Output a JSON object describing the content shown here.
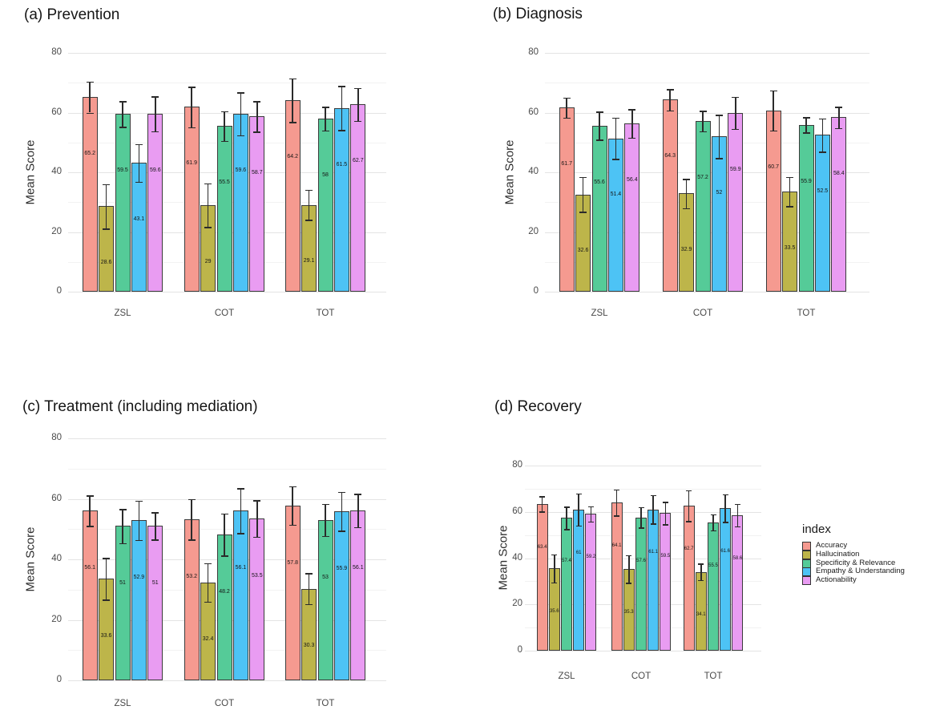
{
  "figure_title": "",
  "legend": {
    "title": "index",
    "entries": [
      {
        "label": "Accuracy",
        "color": "#F59A90"
      },
      {
        "label": "Hallucination",
        "color": "#BDB54A"
      },
      {
        "label": "Specificity & Relevance",
        "color": "#55CB98"
      },
      {
        "label": "Empathy & Understanding",
        "color": "#4DC3F5"
      },
      {
        "label": "Actionability",
        "color": "#E99CF2"
      }
    ]
  },
  "chart_data": [
    {
      "type": "bar",
      "title": "(a) Prevention",
      "xlabel": "",
      "ylabel": "Mean Score",
      "ylim": [
        0,
        80
      ],
      "yticks": [
        0,
        20,
        40,
        60,
        80
      ],
      "grid": true,
      "legend_position": "right-of-panel-d",
      "categories": [
        "ZSL",
        "COT",
        "TOT"
      ],
      "series": [
        {
          "name": "Accuracy",
          "values": [
            65.2,
            61.9,
            64.2
          ],
          "errors": [
            5.2,
            6.8,
            7.3
          ]
        },
        {
          "name": "Hallucination",
          "values": [
            28.6,
            29,
            29.1
          ],
          "errors": [
            7.5,
            7.3,
            5.0
          ]
        },
        {
          "name": "Specificity & Relevance",
          "values": [
            59.5,
            55.5,
            58
          ],
          "errors": [
            4.3,
            5.0,
            4.0
          ]
        },
        {
          "name": "Empathy & Understanding",
          "values": [
            43.1,
            59.6,
            61.5
          ],
          "errors": [
            6.3,
            7.2,
            7.4
          ]
        },
        {
          "name": "Actionability",
          "values": [
            59.6,
            58.7,
            62.7
          ],
          "errors": [
            5.8,
            5.1,
            5.5
          ]
        }
      ]
    },
    {
      "type": "bar",
      "title": "(b) Diagnosis",
      "xlabel": "",
      "ylabel": "Mean Score",
      "ylim": [
        0,
        80
      ],
      "yticks": [
        0,
        20,
        40,
        60,
        80
      ],
      "grid": true,
      "categories": [
        "ZSL",
        "COT",
        "TOT"
      ],
      "series": [
        {
          "name": "Accuracy",
          "values": [
            61.7,
            64.3,
            60.7
          ],
          "errors": [
            3.4,
            3.6,
            6.7
          ]
        },
        {
          "name": "Hallucination",
          "values": [
            32.6,
            32.9,
            33.5
          ],
          "errors": [
            5.8,
            4.9,
            4.9
          ]
        },
        {
          "name": "Specificity & Relevance",
          "values": [
            55.6,
            57.2,
            55.9
          ],
          "errors": [
            4.7,
            3.4,
            2.6
          ]
        },
        {
          "name": "Empathy & Understanding",
          "values": [
            51.4,
            52,
            52.5
          ],
          "errors": [
            6.9,
            7.2,
            5.6
          ]
        },
        {
          "name": "Actionability",
          "values": [
            56.4,
            59.9,
            58.4
          ],
          "errors": [
            4.8,
            5.4,
            3.6
          ]
        }
      ]
    },
    {
      "type": "bar",
      "title": "(c) Treatment (including mediation)",
      "xlabel": "",
      "ylabel": "Mean Score",
      "ylim": [
        0,
        80
      ],
      "yticks": [
        0,
        20,
        40,
        60,
        80
      ],
      "grid": true,
      "categories": [
        "ZSL",
        "COT",
        "TOT"
      ],
      "series": [
        {
          "name": "Accuracy",
          "values": [
            56.1,
            53.2,
            57.8
          ],
          "errors": [
            5.0,
            6.7,
            6.4
          ]
        },
        {
          "name": "Hallucination",
          "values": [
            33.6,
            32.4,
            30.3
          ],
          "errors": [
            6.9,
            6.4,
            5.1
          ]
        },
        {
          "name": "Specificity & Relevance",
          "values": [
            51,
            48.2,
            53
          ],
          "errors": [
            5.6,
            7.0,
            5.3
          ]
        },
        {
          "name": "Empathy & Understanding",
          "values": [
            52.9,
            56.1,
            55.9
          ],
          "errors": [
            6.5,
            7.4,
            6.4
          ]
        },
        {
          "name": "Actionability",
          "values": [
            51,
            53.5,
            56.1
          ],
          "errors": [
            4.5,
            6.0,
            5.5
          ]
        }
      ]
    },
    {
      "type": "bar",
      "title": "(d) Recovery",
      "xlabel": "",
      "ylabel": "Mean Score",
      "ylim": [
        0,
        80
      ],
      "yticks": [
        0,
        20,
        40,
        60,
        80
      ],
      "grid": true,
      "categories": [
        "ZSL",
        "COT",
        "TOT"
      ],
      "series": [
        {
          "name": "Accuracy",
          "values": [
            63.4,
            64.1,
            62.7
          ],
          "errors": [
            3.3,
            5.6,
            6.7
          ]
        },
        {
          "name": "Hallucination",
          "values": [
            35.6,
            35.3,
            34.1
          ],
          "errors": [
            6.0,
            6.0,
            3.5
          ]
        },
        {
          "name": "Specificity & Relevance",
          "values": [
            57.4,
            57.6,
            55.5
          ],
          "errors": [
            4.9,
            4.4,
            3.4
          ]
        },
        {
          "name": "Empathy & Understanding",
          "values": [
            61,
            61.1,
            61.6
          ],
          "errors": [
            6.9,
            6.2,
            6.0
          ]
        },
        {
          "name": "Actionability",
          "values": [
            59.2,
            59.5,
            58.6
          ],
          "errors": [
            3.3,
            4.9,
            4.9
          ]
        }
      ]
    }
  ]
}
